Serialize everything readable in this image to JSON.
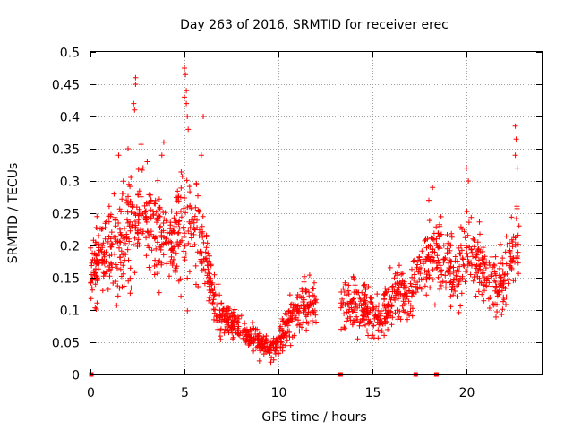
{
  "chart_data": {
    "type": "scatter",
    "title": "Day 263 of 2016, SRMTID for receiver erec",
    "xlabel": "GPS time / hours",
    "ylabel": "SRMTID / TECUs",
    "xlim": [
      0,
      24
    ],
    "ylim": [
      0,
      0.5
    ],
    "x_ticks": [
      0,
      5,
      10,
      15,
      20
    ],
    "x_tick_labels": [
      "0",
      "5",
      "10",
      "15",
      "20"
    ],
    "y_ticks": [
      0,
      0.05,
      0.1,
      0.15,
      0.2,
      0.25,
      0.3,
      0.35,
      0.4,
      0.45,
      0.5
    ],
    "y_tick_labels": [
      "0",
      "0.05",
      "0.1",
      "0.15",
      "0.2",
      "0.25",
      "0.3",
      "0.35",
      "0.4",
      "0.45",
      "0.5"
    ],
    "grid": true,
    "marker": "+",
    "series_color": "#ff0000",
    "profile": {
      "x": [
        0.0,
        0.5,
        1.0,
        1.5,
        2.0,
        2.5,
        3.0,
        3.5,
        4.0,
        4.5,
        5.0,
        5.5,
        6.0,
        6.5,
        7.0,
        7.5,
        8.0,
        8.5,
        9.0,
        9.5,
        10.0,
        10.5,
        11.0,
        11.5,
        12.0,
        13.3,
        13.5,
        14.0,
        14.5,
        15.0,
        15.5,
        16.0,
        16.5,
        17.0,
        17.5,
        18.0,
        18.5,
        19.0,
        19.5,
        20.0,
        20.5,
        21.0,
        21.5,
        22.0,
        22.5,
        22.8
      ],
      "center": [
        0.15,
        0.18,
        0.2,
        0.2,
        0.22,
        0.24,
        0.24,
        0.22,
        0.21,
        0.2,
        0.22,
        0.22,
        0.21,
        0.12,
        0.09,
        0.08,
        0.07,
        0.06,
        0.05,
        0.04,
        0.05,
        0.08,
        0.1,
        0.11,
        0.11,
        0.1,
        0.11,
        0.1,
        0.1,
        0.09,
        0.09,
        0.12,
        0.13,
        0.13,
        0.16,
        0.18,
        0.18,
        0.16,
        0.16,
        0.18,
        0.18,
        0.15,
        0.14,
        0.15,
        0.2,
        0.22
      ],
      "spread": [
        0.05,
        0.06,
        0.07,
        0.08,
        0.08,
        0.09,
        0.08,
        0.07,
        0.07,
        0.07,
        0.08,
        0.07,
        0.06,
        0.04,
        0.03,
        0.025,
        0.02,
        0.02,
        0.02,
        0.015,
        0.02,
        0.03,
        0.03,
        0.03,
        0.03,
        0.03,
        0.035,
        0.04,
        0.035,
        0.03,
        0.035,
        0.04,
        0.04,
        0.04,
        0.05,
        0.05,
        0.05,
        0.05,
        0.05,
        0.05,
        0.05,
        0.045,
        0.045,
        0.05,
        0.06,
        0.06
      ]
    },
    "data_gap": [
      12.0,
      13.3
    ],
    "outliers": [
      {
        "x": 2.4,
        "y": 0.46
      },
      {
        "x": 2.4,
        "y": 0.45
      },
      {
        "x": 2.3,
        "y": 0.42
      },
      {
        "x": 2.35,
        "y": 0.41
      },
      {
        "x": 5.0,
        "y": 0.475
      },
      {
        "x": 5.05,
        "y": 0.465
      },
      {
        "x": 5.1,
        "y": 0.44
      },
      {
        "x": 5.0,
        "y": 0.43
      },
      {
        "x": 5.1,
        "y": 0.42
      },
      {
        "x": 5.15,
        "y": 0.4
      },
      {
        "x": 5.2,
        "y": 0.38
      },
      {
        "x": 6.0,
        "y": 0.4
      },
      {
        "x": 5.9,
        "y": 0.34
      },
      {
        "x": 22.6,
        "y": 0.385
      },
      {
        "x": 22.65,
        "y": 0.365
      },
      {
        "x": 22.6,
        "y": 0.34
      },
      {
        "x": 22.7,
        "y": 0.32
      },
      {
        "x": 20.0,
        "y": 0.32
      },
      {
        "x": 20.1,
        "y": 0.3
      },
      {
        "x": 18.2,
        "y": 0.29
      },
      {
        "x": 18.0,
        "y": 0.27
      },
      {
        "x": 1.5,
        "y": 0.34
      },
      {
        "x": 2.0,
        "y": 0.35
      },
      {
        "x": 3.8,
        "y": 0.34
      },
      {
        "x": 3.9,
        "y": 0.36
      }
    ],
    "zero_markers": [
      {
        "x": 0.05,
        "y": 0
      },
      {
        "x": 13.3,
        "y": 0
      },
      {
        "x": 17.3,
        "y": 0
      },
      {
        "x": 18.4,
        "y": 0
      }
    ]
  }
}
